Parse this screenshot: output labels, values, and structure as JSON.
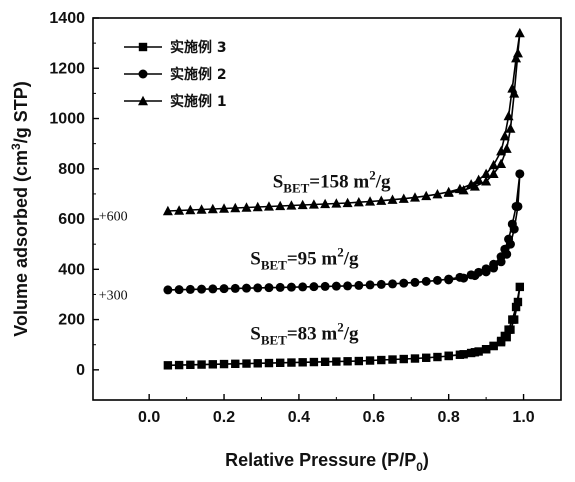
{
  "chart_data": {
    "type": "line",
    "xlabel_main": "Relative Pressure (P/P",
    "xlabel_sub": "0",
    "xlabel_end": ")",
    "ylabel_main": "Volume adsorbed (cm",
    "ylabel_sup": "3",
    "ylabel_end": "/g STP)",
    "xlim": [
      -0.15,
      1.1
    ],
    "ylim": [
      -120,
      1400
    ],
    "x_ticks": [
      0.0,
      0.2,
      0.4,
      0.6,
      0.8,
      1.0
    ],
    "x_tick_labels": [
      "0.0",
      "0.2",
      "0.4",
      "0.6",
      "0.8",
      "1.0"
    ],
    "y_ticks": [
      0,
      200,
      400,
      600,
      800,
      1000,
      1200,
      1400
    ],
    "y_tick_labels": [
      "0",
      "200",
      "400",
      "600",
      "800",
      "1000",
      "1200",
      "1400"
    ],
    "grid": false,
    "legend_position": "top-left",
    "series": [
      {
        "name": "实施例 3",
        "marker": "square",
        "x": [
          0.05,
          0.08,
          0.11,
          0.14,
          0.17,
          0.2,
          0.23,
          0.26,
          0.29,
          0.32,
          0.35,
          0.38,
          0.41,
          0.44,
          0.47,
          0.5,
          0.53,
          0.56,
          0.59,
          0.62,
          0.65,
          0.68,
          0.71,
          0.74,
          0.77,
          0.8,
          0.83,
          0.86,
          0.88,
          0.9,
          0.92,
          0.94,
          0.95,
          0.96,
          0.97,
          0.98,
          0.99,
          0.985,
          0.975,
          0.965,
          0.955,
          0.94,
          0.92,
          0.9,
          0.87,
          0.84,
          0.8
        ],
        "y": [
          18,
          19,
          20,
          21,
          22,
          23,
          24,
          25,
          26,
          27,
          28,
          29,
          30,
          31,
          32,
          33,
          34,
          35,
          37,
          39,
          41,
          43,
          45,
          48,
          51,
          55,
          60,
          67,
          73,
          82,
          95,
          115,
          135,
          160,
          200,
          250,
          330,
          270,
          200,
          160,
          130,
          110,
          95,
          82,
          70,
          62,
          56
        ]
      },
      {
        "name": "实施例 2",
        "marker": "circle",
        "x": [
          0.05,
          0.08,
          0.11,
          0.14,
          0.17,
          0.2,
          0.23,
          0.26,
          0.29,
          0.32,
          0.35,
          0.38,
          0.41,
          0.44,
          0.47,
          0.5,
          0.53,
          0.56,
          0.59,
          0.62,
          0.65,
          0.68,
          0.71,
          0.74,
          0.77,
          0.8,
          0.83,
          0.86,
          0.88,
          0.9,
          0.92,
          0.94,
          0.95,
          0.96,
          0.97,
          0.98,
          0.99,
          0.985,
          0.975,
          0.965,
          0.955,
          0.94,
          0.92,
          0.9,
          0.87,
          0.84,
          0.8
        ],
        "y": [
          318,
          319,
          320,
          321,
          322,
          323,
          324,
          325,
          326,
          327,
          328,
          329,
          330,
          331,
          332,
          333,
          334,
          336,
          338,
          340,
          342,
          345,
          348,
          352,
          356,
          361,
          368,
          378,
          388,
          402,
          420,
          450,
          480,
          520,
          580,
          650,
          780,
          650,
          560,
          500,
          460,
          430,
          405,
          390,
          375,
          365,
          358
        ]
      },
      {
        "name": "实施例 1",
        "marker": "triangle",
        "x": [
          0.05,
          0.08,
          0.11,
          0.14,
          0.17,
          0.2,
          0.23,
          0.26,
          0.29,
          0.32,
          0.35,
          0.38,
          0.41,
          0.44,
          0.47,
          0.5,
          0.53,
          0.56,
          0.59,
          0.62,
          0.65,
          0.68,
          0.71,
          0.74,
          0.77,
          0.8,
          0.83,
          0.86,
          0.88,
          0.9,
          0.92,
          0.94,
          0.95,
          0.96,
          0.97,
          0.98,
          0.99,
          0.985,
          0.975,
          0.965,
          0.955,
          0.94,
          0.92,
          0.9,
          0.87,
          0.84,
          0.8
        ],
        "y": [
          632,
          634,
          636,
          638,
          640,
          642,
          644,
          646,
          648,
          650,
          652,
          654,
          656,
          658,
          660,
          662,
          664,
          667,
          670,
          673,
          677,
          681,
          686,
          692,
          699,
          708,
          720,
          738,
          756,
          780,
          815,
          870,
          930,
          1010,
          1120,
          1240,
          1340,
          1260,
          1100,
          960,
          880,
          820,
          780,
          750,
          730,
          715,
          705
        ]
      }
    ],
    "annotations": [
      {
        "id": "s3",
        "main": "S",
        "sub": "BET",
        "rest": "=83 m",
        "sup": "2",
        "end": "/g",
        "x": 0.27,
        "y": 120
      },
      {
        "id": "s2",
        "main": "S",
        "sub": "BET",
        "rest": "=95 m",
        "sup": "2",
        "end": "/g",
        "x": 0.27,
        "y": 420
      },
      {
        "id": "s1",
        "main": "S",
        "sub": "BET",
        "rest": "=158 m",
        "sup": "2",
        "end": "/g",
        "x": 0.33,
        "y": 725
      }
    ],
    "offset_labels": [
      {
        "id": "o2",
        "text": "+300",
        "x": -0.14,
        "y": 300
      },
      {
        "id": "o1",
        "text": "+600",
        "x": -0.14,
        "y": 615
      }
    ]
  }
}
